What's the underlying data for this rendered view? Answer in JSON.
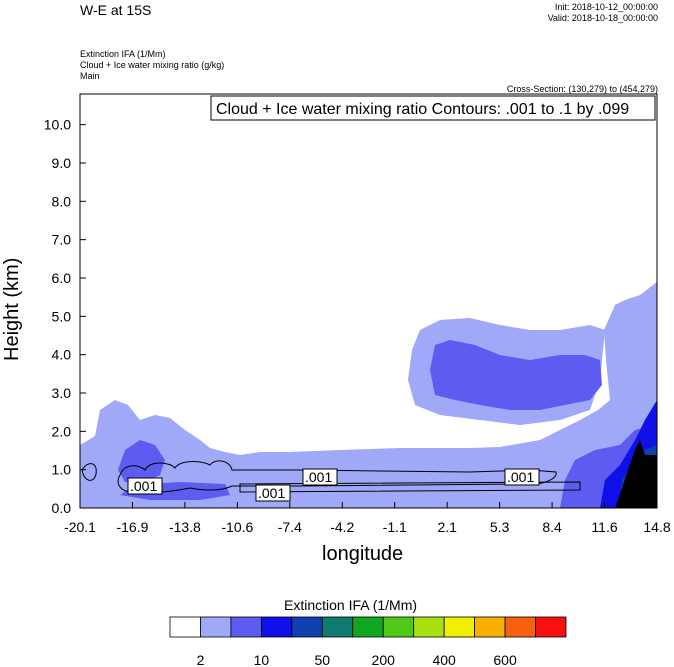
{
  "header": {
    "title": "W-E at 15S",
    "init": "Init: 2018-10-12_00:00:00",
    "valid": "Valid: 2018-10-18_00:00:00",
    "field1": "Extinction IFA   (1/Mm)",
    "field2": "Cloud + Ice water mixing ratio   (g/kg)",
    "field3": "Main",
    "cross_section": "Cross-Section: (130,279) to (454,279)"
  },
  "chart_data": {
    "type": "heatmap",
    "contour_box": "Cloud + Ice water mixing ratio Contours: .001 to .1 by .099",
    "contour_labels": [
      ".001",
      ".001",
      ".001",
      ".001"
    ],
    "xlabel": "longitude",
    "ylabel": "Height (km)",
    "x_ticks": [
      "-20.1",
      "-16.9",
      "-13.8",
      "-10.6",
      "-7.4",
      "-4.2",
      "-1.1",
      "2.1",
      "5.3",
      "8.4",
      "11.6",
      "14.8"
    ],
    "y_ticks": [
      "0.0",
      "1.0",
      "2.0",
      "3.0",
      "4.0",
      "5.0",
      "6.0",
      "7.0",
      "8.0",
      "9.0",
      "10.0"
    ],
    "xlim": [
      -20.1,
      14.8
    ],
    "ylim": [
      0,
      10.8
    ],
    "colorbar": {
      "title": "Extinction IFA  (1/Mm)",
      "colors": [
        "#ffffff",
        "#a0a8f8",
        "#5c5cf0",
        "#1010e8",
        "#1040b0",
        "#107a70",
        "#10a820",
        "#50c818",
        "#a8e010",
        "#f0f000",
        "#f8b000",
        "#f86010",
        "#f81010"
      ],
      "tick_labels": [
        "2",
        "10",
        "50",
        "200",
        "400",
        "600"
      ]
    }
  }
}
